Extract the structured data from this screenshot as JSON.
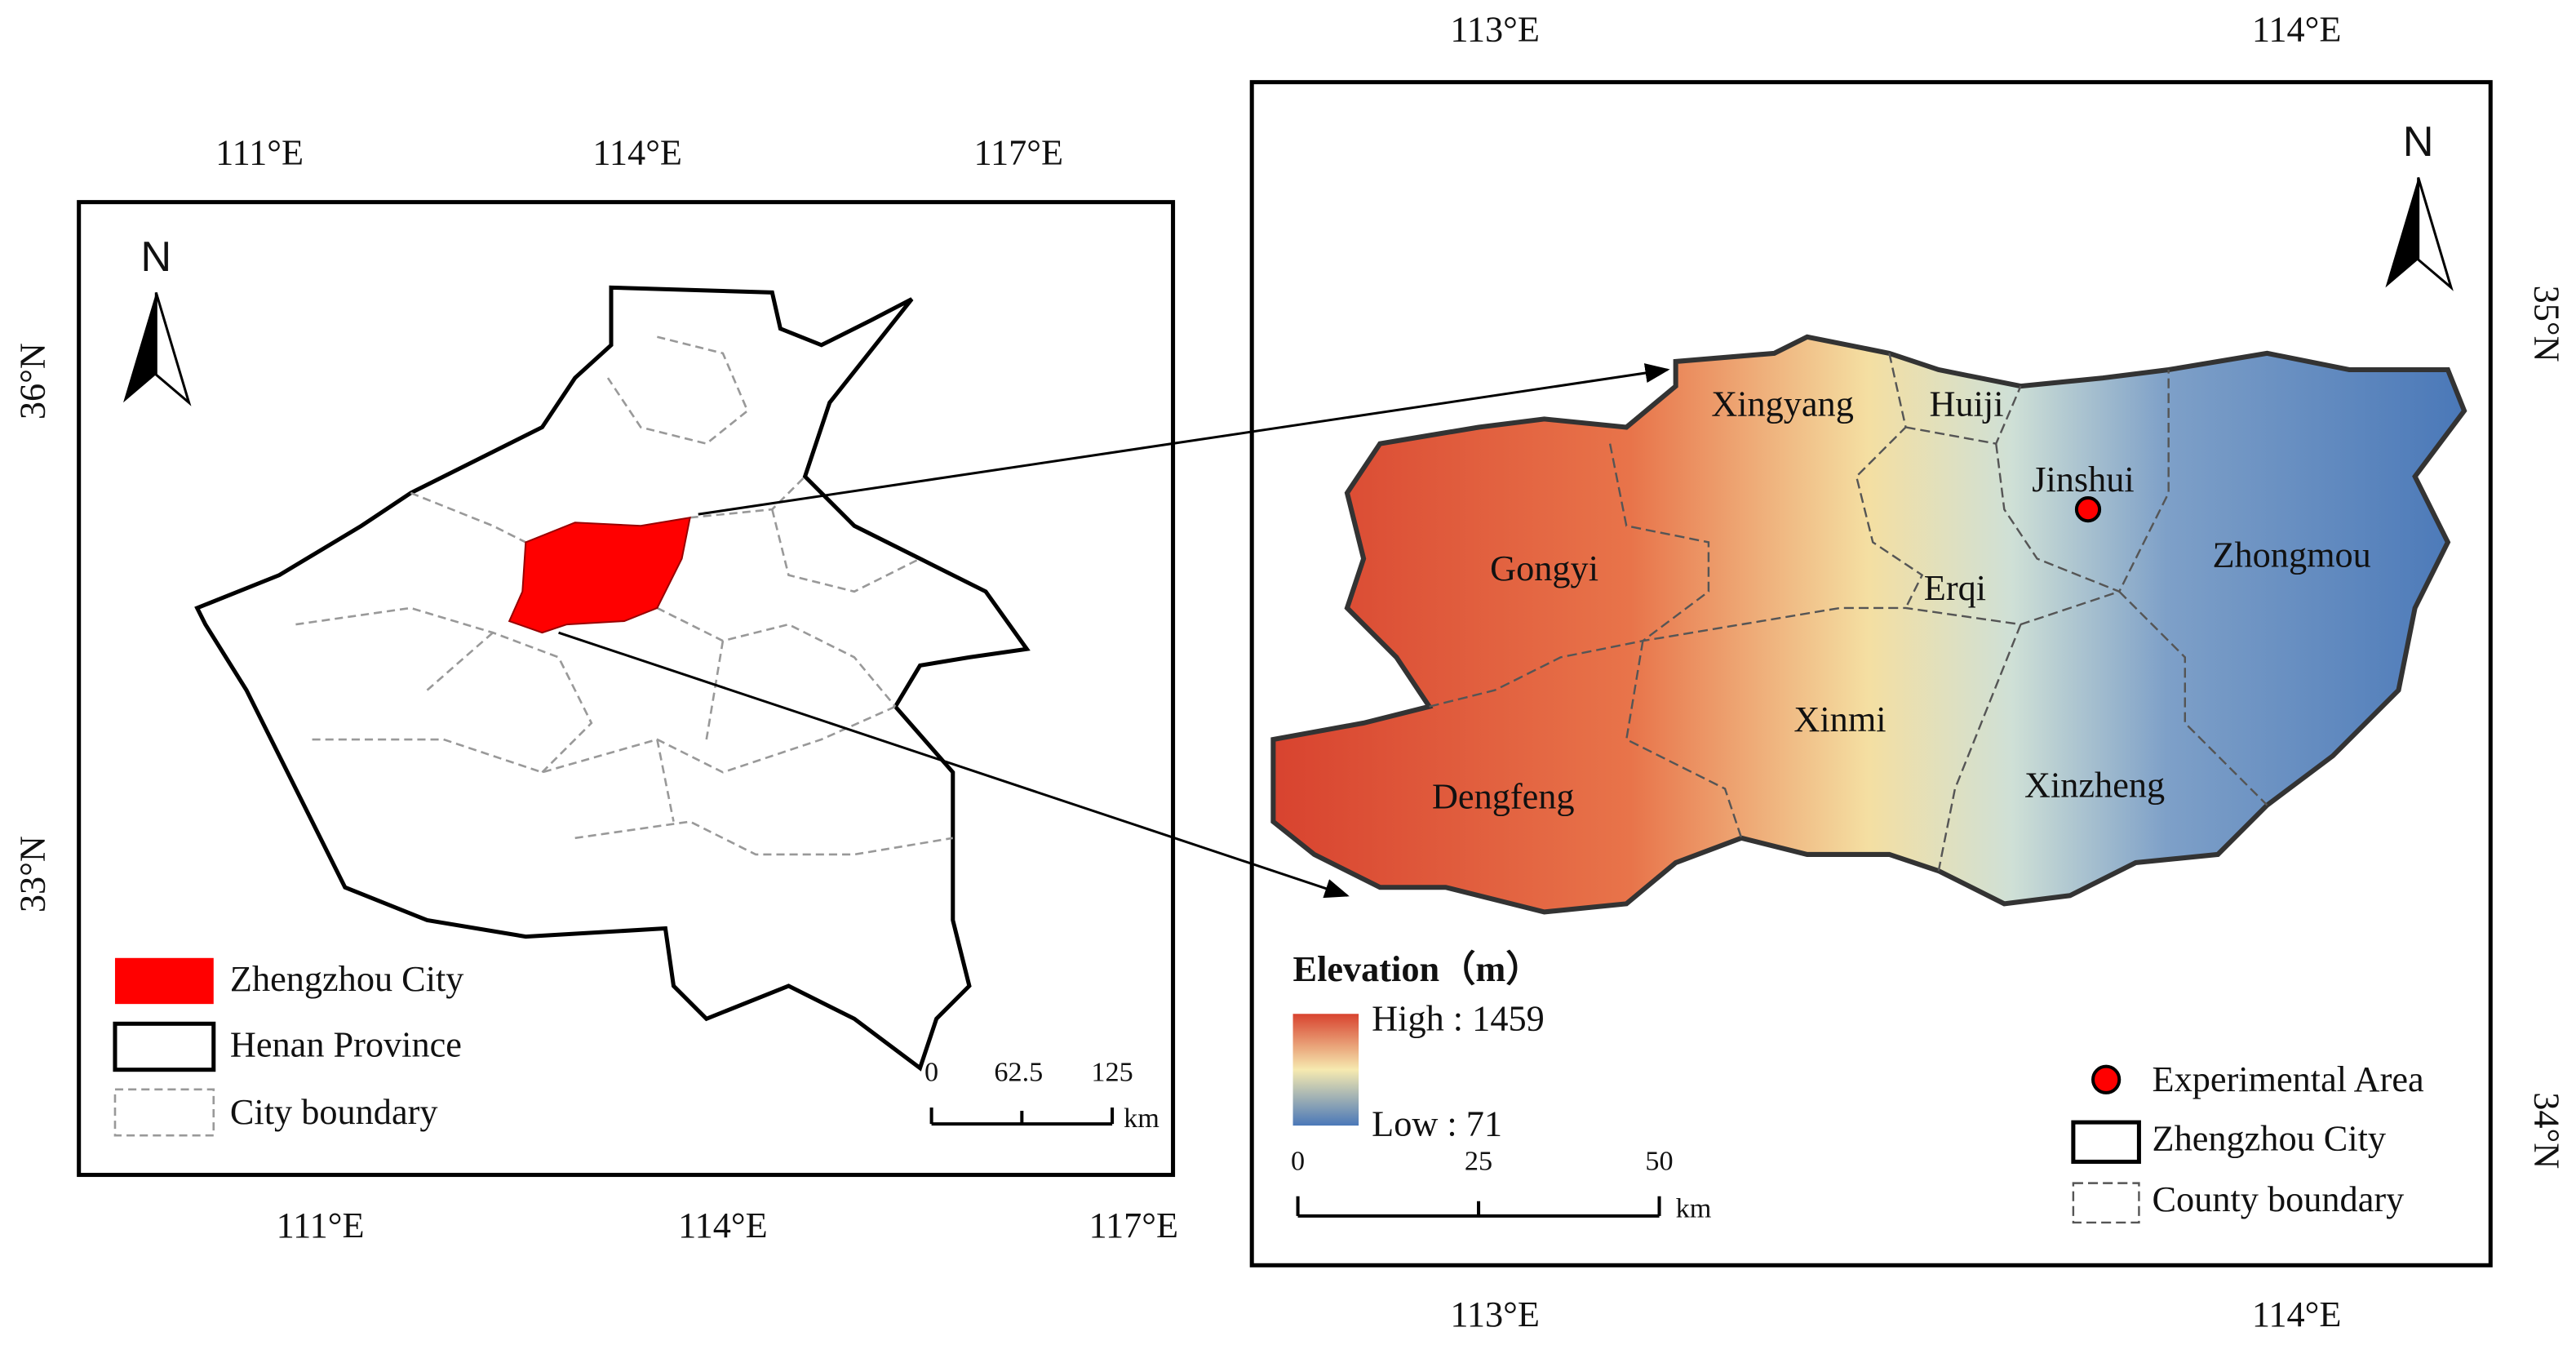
{
  "left_map": {
    "top_labels": [
      "111°E",
      "114°E",
      "117°E"
    ],
    "bottom_labels": [
      "111°E",
      "114°E",
      "117°E"
    ],
    "side_labels": [
      "36°N",
      "33°N"
    ],
    "north": "N",
    "legend": [
      "Zhengzhou City",
      "Henan Province",
      "City boundary"
    ],
    "scale": [
      "0",
      "62.5",
      "125"
    ],
    "scale_unit": "km"
  },
  "right_map": {
    "top_labels": [
      "113°E",
      "114°E"
    ],
    "bottom_labels": [
      "113°E",
      "114°E"
    ],
    "side_labels": [
      "35°N",
      "34°N"
    ],
    "north": "N",
    "regions": [
      "Xingyang",
      "Huiji",
      "Jinshui",
      "Zhongmou",
      "Gongyi",
      "Erqi",
      "Xinmi",
      "Xinzheng",
      "Dengfeng"
    ],
    "elevation_title": "Elevation（m）",
    "elevation_high": "High : 1459",
    "elevation_low": "Low : 71",
    "legend": [
      "Experimental Area",
      "Zhengzhou City",
      "County boundary"
    ],
    "scale": [
      "0",
      "25",
      "50"
    ],
    "scale_unit": "km"
  }
}
